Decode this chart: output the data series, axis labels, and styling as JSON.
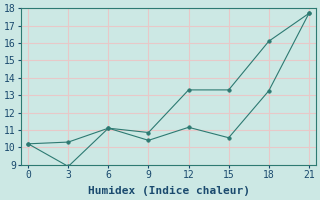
{
  "xlabel": "Humidex (Indice chaleur)",
  "line1_x": [
    0,
    3,
    6,
    9,
    12,
    15,
    18,
    21
  ],
  "line1_y": [
    10.2,
    8.9,
    11.1,
    10.85,
    13.3,
    13.3,
    16.1,
    17.7
  ],
  "line2_x": [
    0,
    3,
    6,
    9,
    12,
    15,
    18,
    21
  ],
  "line2_y": [
    10.2,
    10.3,
    11.1,
    10.4,
    11.15,
    10.55,
    13.25,
    17.7
  ],
  "line_color": "#2d7a72",
  "bg_color": "#cce8e4",
  "grid_color": "#e8c8c8",
  "xlim": [
    -0.5,
    21.5
  ],
  "ylim": [
    9,
    18
  ],
  "xticks": [
    0,
    3,
    6,
    9,
    12,
    15,
    18,
    21
  ],
  "yticks": [
    9,
    10,
    11,
    12,
    13,
    14,
    15,
    16,
    17,
    18
  ],
  "xlabel_fontsize": 8,
  "tick_fontsize": 7
}
